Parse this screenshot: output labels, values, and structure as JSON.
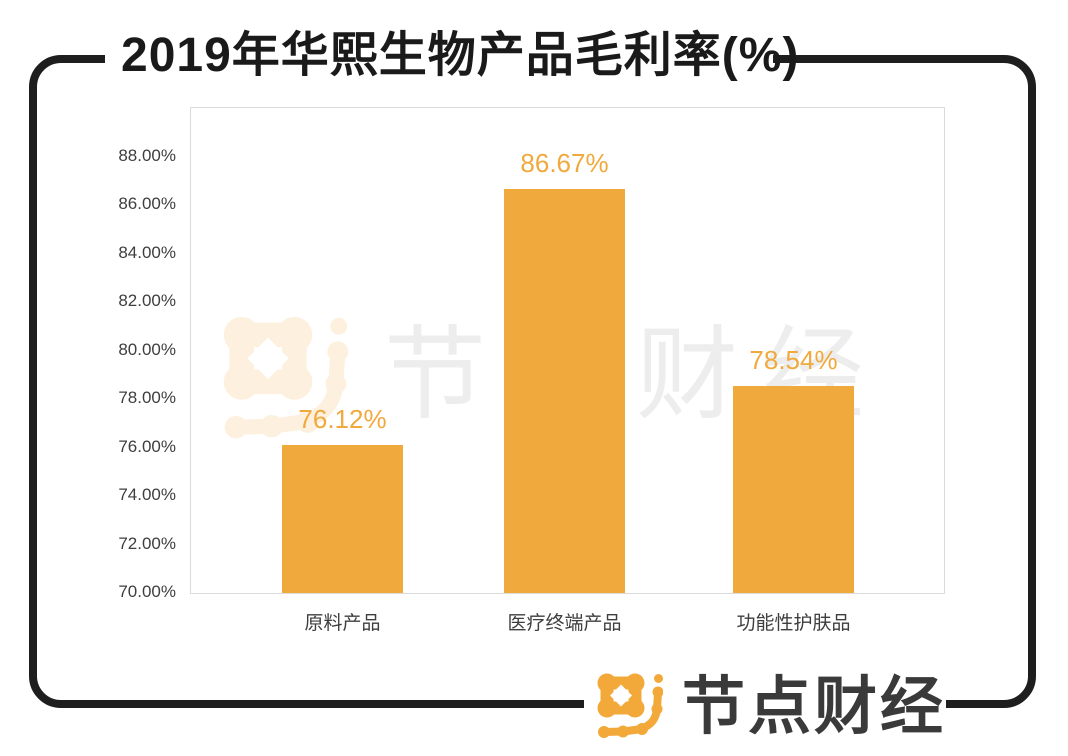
{
  "title": "2019年华熙生物产品毛利率(%)",
  "watermark": {
    "logo_icon": "node-finance-molecule-icon",
    "text": "节点财经"
  },
  "brand": {
    "logo_icon": "node-finance-molecule-icon",
    "text": "节点财经"
  },
  "colors": {
    "bar": "#F0A93C",
    "value_label": "#F0A93C",
    "frame": "#1E1E1E",
    "axis_text": "#3E3E3E",
    "plot_border": "#DBDBDB",
    "watermark_text": "#EDEDED",
    "brand_orange": "#F3A93A",
    "brand_text": "#3A3A3A"
  },
  "chart_data": {
    "type": "bar",
    "title": "2019年华熙生物产品毛利率(%)",
    "categories": [
      "原料产品",
      "医疗终端产品",
      "功能性护肤品"
    ],
    "values": [
      76.12,
      86.67,
      78.54
    ],
    "value_labels": [
      "76.12%",
      "86.67%",
      "78.54%"
    ],
    "xlabel": "",
    "ylabel": "",
    "ylim": [
      70,
      90
    ],
    "y_tick_values": [
      88,
      86,
      84,
      82,
      80,
      78,
      76,
      74,
      72,
      70
    ],
    "y_ticks": [
      "88.00%",
      "86.00%",
      "84.00%",
      "82.00%",
      "80.00%",
      "78.00%",
      "76.00%",
      "74.00%",
      "72.00%",
      "70.00%"
    ],
    "grid": false,
    "legend": false,
    "bar_color": "#F0A93C"
  }
}
